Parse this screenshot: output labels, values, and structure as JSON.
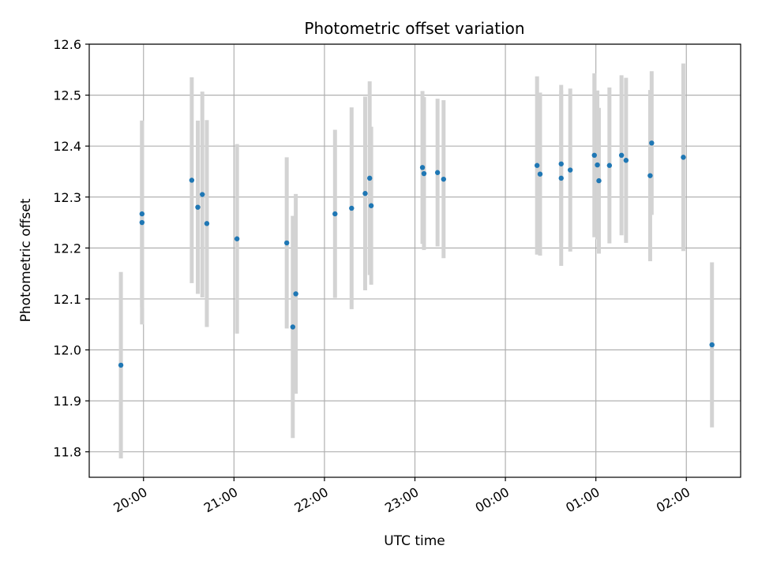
{
  "chart_data": {
    "type": "scatter",
    "title": "Photometric offset variation",
    "xlabel": "UTC time",
    "ylabel": "Photometric offset",
    "x_ticks": [
      "20:00",
      "21:00",
      "22:00",
      "23:00",
      "00:00",
      "01:00",
      "02:00"
    ],
    "y_ticks": [
      "11.8",
      "11.9",
      "12.0",
      "12.1",
      "12.2",
      "12.3",
      "12.4",
      "12.5",
      "12.6"
    ],
    "xlim": [
      "19:24",
      "02:36"
    ],
    "ylim": [
      11.75,
      12.6
    ],
    "grid": true,
    "colors": {
      "point": "#1f77b4",
      "errorbar": "#d3d3d3",
      "grid": "#b0b0b0"
    },
    "series": [
      {
        "points": [
          {
            "x": "19:45",
            "y": 11.97,
            "err": 0.183
          },
          {
            "x": "19:59",
            "y": 12.267,
            "err": 0.183
          },
          {
            "x": "19:59",
            "y": 12.25,
            "err": 0.2
          },
          {
            "x": "20:32",
            "y": 12.333,
            "err": 0.202
          },
          {
            "x": "20:36",
            "y": 12.28,
            "err": 0.17
          },
          {
            "x": "20:39",
            "y": 12.305,
            "err": 0.202
          },
          {
            "x": "20:42",
            "y": 12.248,
            "err": 0.203
          },
          {
            "x": "21:02",
            "y": 12.218,
            "err": 0.186
          },
          {
            "x": "21:35",
            "y": 12.21,
            "err": 0.168
          },
          {
            "x": "21:39",
            "y": 12.045,
            "err": 0.218
          },
          {
            "x": "21:41",
            "y": 12.11,
            "err": 0.196
          },
          {
            "x": "22:07",
            "y": 12.267,
            "err": 0.165
          },
          {
            "x": "22:18",
            "y": 12.278,
            "err": 0.198
          },
          {
            "x": "22:27",
            "y": 12.307,
            "err": 0.19
          },
          {
            "x": "22:30",
            "y": 12.337,
            "err": 0.19
          },
          {
            "x": "22:31",
            "y": 12.283,
            "err": 0.155
          },
          {
            "x": "23:05",
            "y": 12.358,
            "err": 0.15
          },
          {
            "x": "23:06",
            "y": 12.346,
            "err": 0.15
          },
          {
            "x": "23:15",
            "y": 12.348,
            "err": 0.145
          },
          {
            "x": "23:19",
            "y": 12.335,
            "err": 0.155
          },
          {
            "x": "00:21",
            "y": 12.362,
            "err": 0.175
          },
          {
            "x": "00:23",
            "y": 12.345,
            "err": 0.16
          },
          {
            "x": "00:37",
            "y": 12.365,
            "err": 0.155
          },
          {
            "x": "00:37",
            "y": 12.337,
            "err": 0.172
          },
          {
            "x": "00:43",
            "y": 12.353,
            "err": 0.16
          },
          {
            "x": "00:59",
            "y": 12.382,
            "err": 0.161
          },
          {
            "x": "01:01",
            "y": 12.363,
            "err": 0.146
          },
          {
            "x": "01:02",
            "y": 12.332,
            "err": 0.143
          },
          {
            "x": "01:09",
            "y": 12.362,
            "err": 0.153
          },
          {
            "x": "01:17",
            "y": 12.382,
            "err": 0.157
          },
          {
            "x": "01:20",
            "y": 12.372,
            "err": 0.162
          },
          {
            "x": "01:36",
            "y": 12.342,
            "err": 0.168
          },
          {
            "x": "01:37",
            "y": 12.406,
            "err": 0.141
          },
          {
            "x": "01:58",
            "y": 12.378,
            "err": 0.184
          },
          {
            "x": "02:17",
            "y": 12.01,
            "err": 0.162
          }
        ]
      }
    ]
  }
}
